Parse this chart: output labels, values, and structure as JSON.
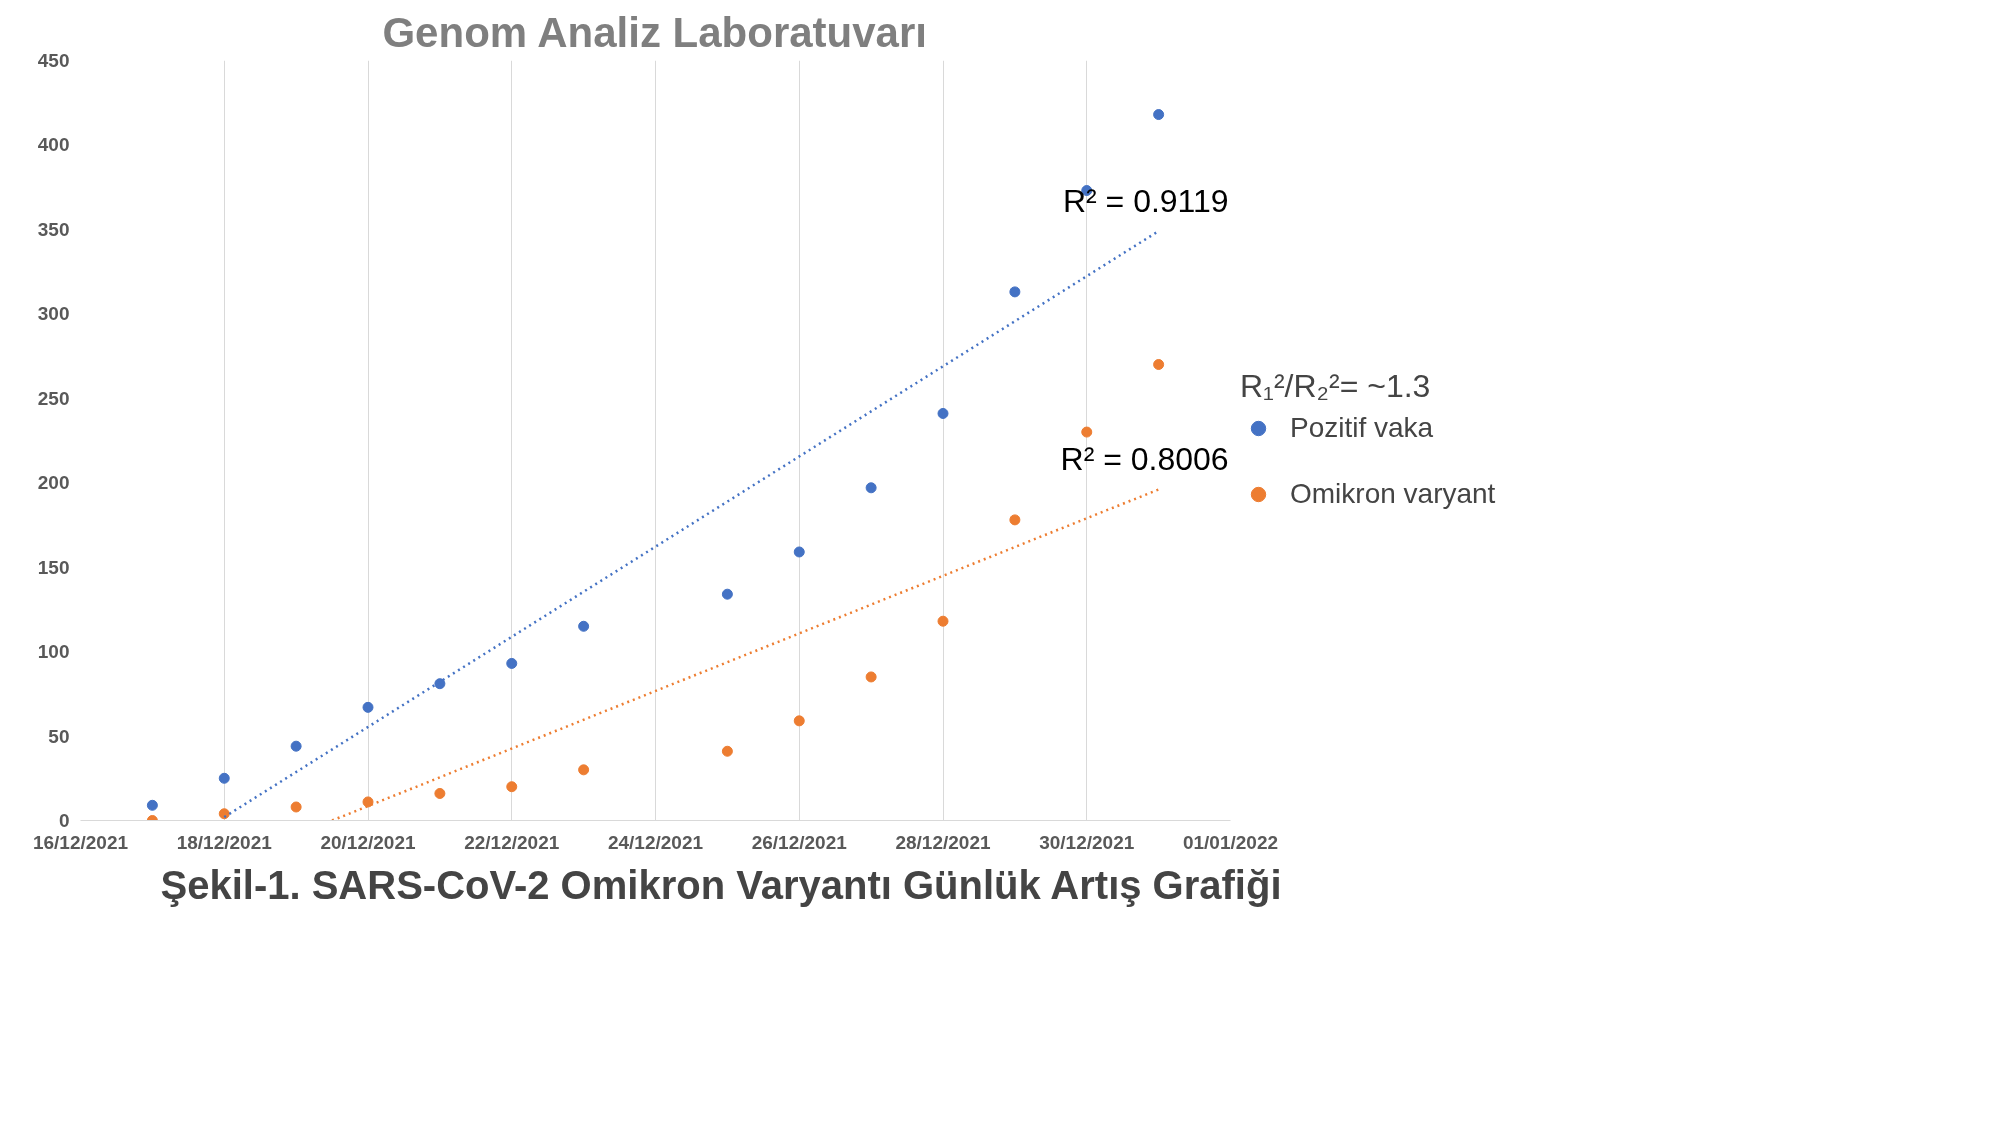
{
  "chart_data": {
    "type": "scatter",
    "title": "Genom Analiz Laboratuvarı",
    "x": [
      "2021-12-17",
      "2021-12-18",
      "2021-12-19",
      "2021-12-20",
      "2021-12-21",
      "2021-12-22",
      "2021-12-23",
      "2021-12-25",
      "2021-12-26",
      "2021-12-27",
      "2021-12-28",
      "2021-12-29",
      "2021-12-30",
      "2021-12-31"
    ],
    "series": [
      {
        "name": "Pozitif vaka",
        "color": "#4472c4",
        "values": [
          9,
          25,
          44,
          67,
          81,
          93,
          115,
          134,
          159,
          197,
          241,
          313,
          373,
          418
        ]
      },
      {
        "name": "Omikron varyant",
        "color": "#ed7d31",
        "values": [
          0,
          4,
          8,
          11,
          16,
          20,
          30,
          41,
          59,
          85,
          118,
          178,
          230,
          270
        ]
      },
      {
        "type": "line",
        "color": "#4472c4",
        "line_style": "dotted",
        "marker": "none",
        "x": [
          "2021-12-18",
          "2021-12-31"
        ],
        "values": [
          2,
          349
        ]
      },
      {
        "type": "line",
        "color": "#ed7d31",
        "line_style": "dotted",
        "marker": "none",
        "x": [
          "2021-12-19T12:00",
          "2021-12-31"
        ],
        "values": [
          0,
          196
        ]
      }
    ],
    "marker": "circle",
    "legend": "right",
    "legend_title": "R₁²/R₂²= ~1.3",
    "annotations": [
      {
        "text": "R² = 0.9119",
        "x": "2021-12-31",
        "y": 349
      },
      {
        "text": "R² = 0.8006",
        "x": "2021-12-31",
        "y": 196
      },
      "Şekil-1. SARS-CoV-2 Omikron Varyantı Günlük Artış Grafiği"
    ],
    "xlim": [
      "2021-12-16",
      "2022-01-01"
    ],
    "xticks": [
      {
        "value": "2021-12-16",
        "label": "16/12/2021"
      },
      {
        "value": "2021-12-18",
        "label": "18/12/2021"
      },
      {
        "value": "2021-12-20",
        "label": "20/12/2021"
      },
      {
        "value": "2021-12-22",
        "label": "22/12/2021"
      },
      {
        "value": "2021-12-24",
        "label": "24/12/2021"
      },
      {
        "value": "2021-12-26",
        "label": "26/12/2021"
      },
      {
        "value": "2021-12-28",
        "label": "28/12/2021"
      },
      {
        "value": "2021-12-30",
        "label": "30/12/2021"
      },
      {
        "value": "2022-01-01",
        "label": "01/01/2022"
      }
    ],
    "ylim": [
      0,
      450
    ],
    "yticks": [
      0,
      50,
      100,
      150,
      200,
      250,
      300,
      350,
      400,
      450
    ],
    "grid": "x"
  }
}
